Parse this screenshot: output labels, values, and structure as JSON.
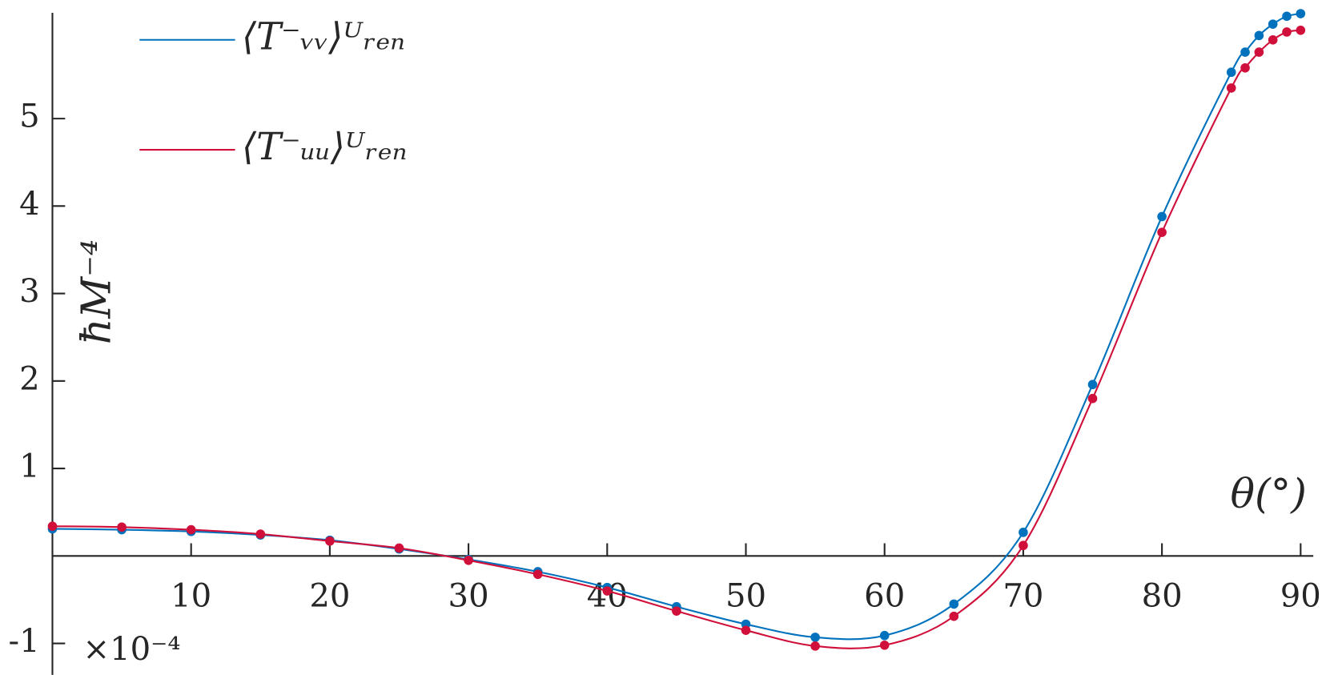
{
  "chart_data": {
    "type": "line",
    "y_label": "ħM⁻⁴",
    "x_label": "θ(°)",
    "multiplier": "×10⁻⁴",
    "x": [
      0,
      5,
      10,
      15,
      20,
      25,
      30,
      35,
      40,
      45,
      50,
      55,
      60,
      65,
      70,
      75,
      80,
      85,
      86,
      87,
      88,
      89,
      90
    ],
    "series": [
      {
        "name": "⟨T⁻ᵥᵥ⟩ᵁᵣₑₙ",
        "color": "#0072bd",
        "values": [
          0.31,
          0.3,
          0.28,
          0.24,
          0.18,
          0.08,
          -0.04,
          -0.18,
          -0.36,
          -0.58,
          -0.78,
          -0.93,
          -0.91,
          -0.55,
          0.27,
          1.96,
          3.88,
          5.53,
          5.76,
          5.95,
          6.08,
          6.17,
          6.2
        ]
      },
      {
        "name": "⟨T⁻ᵤᵤ⟩ᵁᵣₑₙ",
        "color": "#d0103a",
        "values": [
          0.34,
          0.33,
          0.3,
          0.25,
          0.17,
          0.09,
          -0.05,
          -0.21,
          -0.4,
          -0.63,
          -0.85,
          -1.03,
          -1.02,
          -0.69,
          0.12,
          1.8,
          3.7,
          5.35,
          5.58,
          5.76,
          5.9,
          5.99,
          6.01
        ]
      }
    ],
    "xlim": [
      0,
      90
    ],
    "xticks": [
      10,
      20,
      30,
      40,
      50,
      60,
      70,
      80,
      90
    ],
    "ylim": [
      -1.36,
      6.21
    ],
    "yticks": [
      -1,
      1,
      2,
      3,
      4,
      5
    ],
    "markers": true,
    "grid": false
  }
}
